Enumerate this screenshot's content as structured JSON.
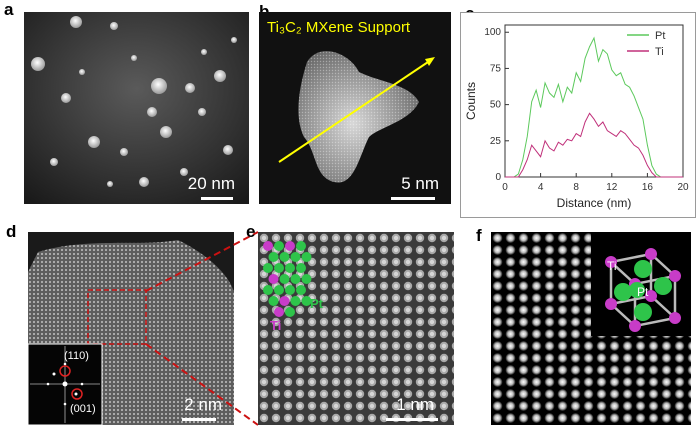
{
  "panels": {
    "a": {
      "label": "a",
      "scale": "20 nm"
    },
    "b": {
      "label": "b",
      "title": "Ti₃C₂ MXene Support",
      "scale": "5 nm"
    },
    "c": {
      "label": "c"
    },
    "d": {
      "label": "d",
      "scale": "2 nm",
      "fft_labels": [
        "(110)",
        "(001)"
      ]
    },
    "e": {
      "label": "e",
      "scale": "1 nm",
      "atom_labels": {
        "pt": "Pt",
        "ti": "Ti"
      }
    },
    "f": {
      "label": "f",
      "atom_labels": {
        "pt": "Pt",
        "ti": "Ti"
      }
    }
  },
  "colors": {
    "pt": "#2ec44a",
    "ti": "#c83cc8",
    "pt_line": "#5cc95c",
    "ti_line": "#c0307a",
    "title_yellow": "#ffff00",
    "zoom_box": "#cc1111"
  },
  "chart_data": {
    "type": "line",
    "xlabel": "Distance (nm)",
    "ylabel": "Counts",
    "xlim": [
      0,
      20
    ],
    "ylim": [
      0,
      105
    ],
    "xticks": [
      0,
      4,
      8,
      12,
      16,
      20
    ],
    "yticks": [
      0,
      25,
      50,
      75,
      100
    ],
    "legend_position": "top-right",
    "series": [
      {
        "name": "Pt",
        "color": "#5cc95c",
        "x": [
          0,
          0.5,
          1,
          1.5,
          2,
          2.5,
          3,
          3.5,
          4,
          4.5,
          5,
          5.5,
          6,
          6.5,
          7,
          7.5,
          8,
          8.5,
          9,
          9.5,
          10,
          10.5,
          11,
          11.5,
          12,
          12.5,
          13,
          13.5,
          14,
          14.5,
          15,
          15.5,
          16,
          16.5,
          17,
          17.5,
          18,
          18.5,
          19,
          19.5,
          20
        ],
        "y": [
          0,
          0,
          0,
          2,
          12,
          28,
          52,
          60,
          48,
          65,
          58,
          55,
          64,
          52,
          62,
          58,
          72,
          66,
          82,
          90,
          96,
          80,
          88,
          85,
          74,
          70,
          72,
          64,
          62,
          56,
          48,
          40,
          22,
          8,
          2,
          0,
          0,
          0,
          0,
          0,
          0
        ]
      },
      {
        "name": "Ti",
        "color": "#c0307a",
        "x": [
          0,
          0.5,
          1,
          1.5,
          2,
          2.5,
          3,
          3.5,
          4,
          4.5,
          5,
          5.5,
          6,
          6.5,
          7,
          7.5,
          8,
          8.5,
          9,
          9.5,
          10,
          10.5,
          11,
          11.5,
          12,
          12.5,
          13,
          13.5,
          14,
          14.5,
          15,
          15.5,
          16,
          16.5,
          17,
          17.5,
          18,
          18.5,
          19,
          19.5,
          20
        ],
        "y": [
          0,
          0,
          0,
          0,
          5,
          12,
          22,
          18,
          14,
          25,
          20,
          18,
          24,
          22,
          26,
          25,
          30,
          28,
          38,
          44,
          40,
          35,
          38,
          32,
          30,
          28,
          32,
          30,
          26,
          22,
          20,
          15,
          8,
          3,
          0,
          0,
          0,
          0,
          0,
          0,
          0
        ]
      }
    ]
  }
}
